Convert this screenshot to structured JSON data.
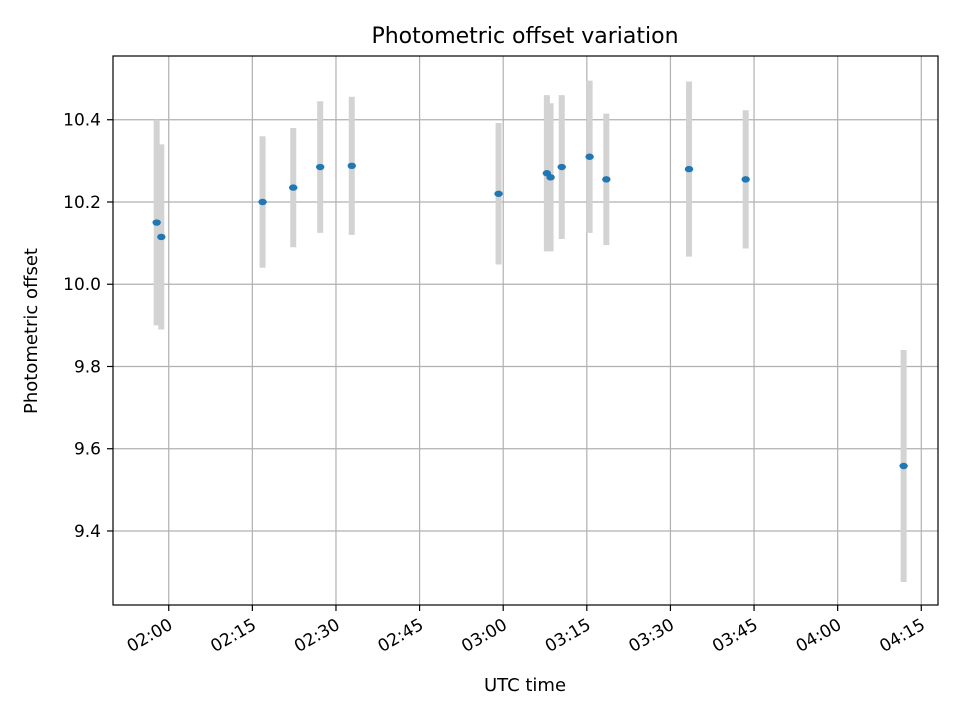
{
  "chart_data": {
    "type": "scatter",
    "title": "Photometric offset variation",
    "xlabel": "UTC time",
    "ylabel": "Photometric offset",
    "x_unit": "time of day (UTC)",
    "xlim": [
      "01:50",
      "04:18"
    ],
    "ylim": [
      9.22,
      10.555
    ],
    "x_ticks": [
      "02:00",
      "02:15",
      "02:30",
      "02:45",
      "03:00",
      "03:15",
      "03:30",
      "03:45",
      "04:00",
      "04:15"
    ],
    "y_ticks": [
      "9.4",
      "9.6",
      "9.8",
      "10.0",
      "10.2",
      "10.4"
    ],
    "grid": true,
    "series": [
      {
        "marker_color": "#1f77b4",
        "errorbar_color": "#d3d3d3",
        "points": [
          {
            "x": "01:57:50",
            "y": 10.15,
            "err": 0.25
          },
          {
            "x": "01:58:40",
            "y": 10.115,
            "err": 0.225
          },
          {
            "x": "02:16:50",
            "y": 10.2,
            "err": 0.16
          },
          {
            "x": "02:22:20",
            "y": 10.235,
            "err": 0.145
          },
          {
            "x": "02:27:10",
            "y": 10.285,
            "err": 0.16
          },
          {
            "x": "02:32:50",
            "y": 10.288,
            "err": 0.168
          },
          {
            "x": "02:59:10",
            "y": 10.22,
            "err": 0.172
          },
          {
            "x": "03:07:50",
            "y": 10.27,
            "err": 0.19
          },
          {
            "x": "03:08:30",
            "y": 10.26,
            "err": 0.18
          },
          {
            "x": "03:10:30",
            "y": 10.285,
            "err": 0.175
          },
          {
            "x": "03:15:30",
            "y": 10.31,
            "err": 0.185
          },
          {
            "x": "03:18:30",
            "y": 10.255,
            "err": 0.16
          },
          {
            "x": "03:33:20",
            "y": 10.28,
            "err": 0.213
          },
          {
            "x": "03:43:30",
            "y": 10.255,
            "err": 0.168
          },
          {
            "x": "04:11:50",
            "y": 9.558,
            "err": 0.282
          }
        ]
      }
    ]
  }
}
